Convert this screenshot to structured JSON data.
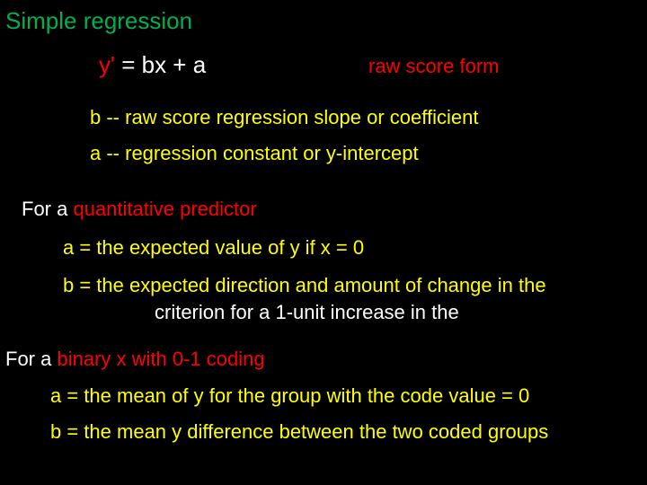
{
  "colors": {
    "background": "#000000",
    "title": "#00b050",
    "red": "#ff0000",
    "white": "#ffffff",
    "yellow": "#ffff00"
  },
  "typography": {
    "title_fontsize": 26,
    "body_fontsize": 22,
    "equation_fontsize": 26,
    "font_family": "Arial"
  },
  "title": "Simple regression",
  "equation": {
    "lhs": "y'",
    "eq": "  =  ",
    "rhs": "bx + a",
    "label": "raw score form"
  },
  "definitions": {
    "b": "b  -- raw score regression slope or coefficient",
    "a": "a -- regression constant or y-intercept"
  },
  "quantitative": {
    "header_prefix": "For a ",
    "header_highlight": "quantitative predictor",
    "a_line": "a =  the expected value of y if x = 0",
    "b_line": "b = the expected direction and amount of change in the",
    "b_cont": "criterion for a 1-unit increase in the"
  },
  "binary": {
    "header_prefix": "For a ",
    "header_highlight": "binary x with 0-1 coding",
    "a_line": "a = the mean of y for the group with the code value = 0",
    "b_line": "b = the mean y difference between the two coded groups"
  }
}
